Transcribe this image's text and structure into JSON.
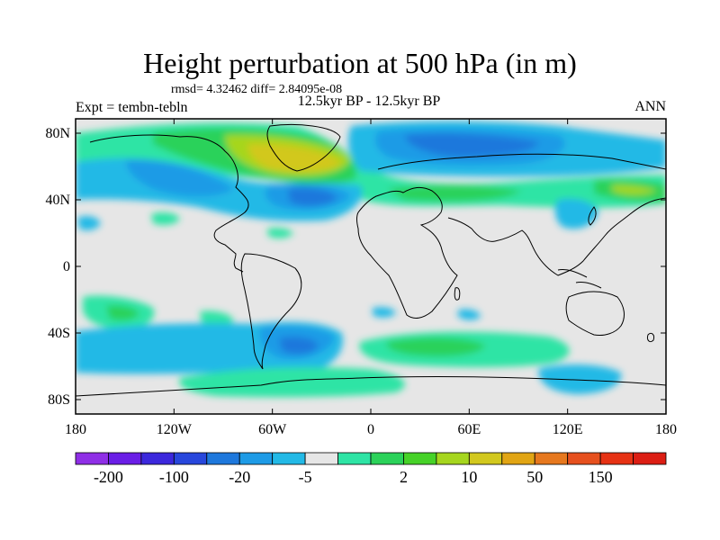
{
  "title": "Height perturbation at 500 hPa (in m)",
  "stats": "rmsd= 4.32462 diff= 2.84095e-08",
  "experiment": "Expt = tembn-tebln",
  "period": "12.5kyr BP - 12.5kyr BP",
  "season": "ANN",
  "lat_ticks": [
    "80N",
    "40N",
    "0",
    "40S",
    "80S"
  ],
  "lon_ticks": [
    "180",
    "120W",
    "60W",
    "0",
    "60E",
    "120E",
    "180"
  ],
  "colorbar": {
    "colors": [
      "#8f2fe6",
      "#6a1ee6",
      "#3c28dc",
      "#2847dc",
      "#1e78dc",
      "#1e9be6",
      "#23b9e6",
      "#e6e6e6",
      "#2ee4a5",
      "#2bd25a",
      "#46d228",
      "#a6d61e",
      "#d2c81e",
      "#e1a514",
      "#e6781e",
      "#e6501e",
      "#e63214",
      "#dc1e14"
    ],
    "labels": [
      "-200",
      "-100",
      "-20",
      "-5",
      "2",
      "10",
      "50",
      "150"
    ]
  }
}
